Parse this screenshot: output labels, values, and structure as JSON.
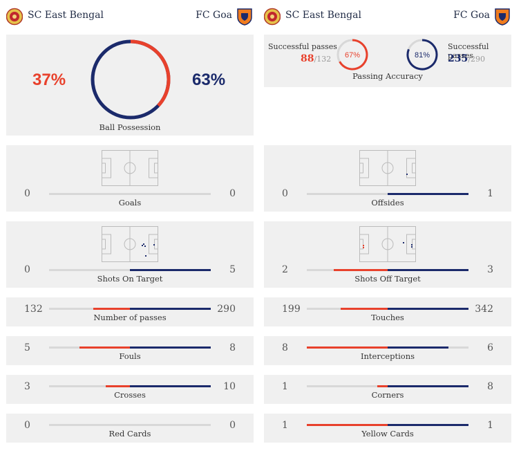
{
  "teams": {
    "home": {
      "name": "SC East Bengal",
      "color": "#e8412c"
    },
    "away": {
      "name": "FC Goa",
      "color": "#1b2a6b"
    }
  },
  "possession": {
    "home_pct": "37%",
    "away_pct": "63%",
    "home_value": 37,
    "away_value": 63,
    "label": "Ball Possession"
  },
  "passing": {
    "label": "Passing Accuracy",
    "home": {
      "label": "Successful passes",
      "success": "88",
      "total": "/132",
      "accuracy": "67%",
      "accuracy_value": 67
    },
    "away": {
      "label": "Successful passes",
      "success": "235",
      "total": "/290",
      "accuracy": "81%",
      "accuracy_value": 81
    }
  },
  "stats": [
    {
      "label": "Goals",
      "home": "0",
      "away": "0",
      "home_val": 0,
      "away_val": 0
    },
    {
      "label": "Offsides",
      "home": "0",
      "away": "1",
      "home_val": 0,
      "away_val": 1
    },
    {
      "label": "Shots On Target",
      "home": "0",
      "away": "5",
      "home_val": 0,
      "away_val": 5
    },
    {
      "label": "Shots Off Target",
      "home": "2",
      "away": "3",
      "home_val": 2,
      "away_val": 3
    },
    {
      "label": "Number of passes",
      "home": "132",
      "away": "290",
      "home_val": 132,
      "away_val": 290
    },
    {
      "label": "Touches",
      "home": "199",
      "away": "342",
      "home_val": 199,
      "away_val": 342
    },
    {
      "label": "Fouls",
      "home": "5",
      "away": "8",
      "home_val": 5,
      "away_val": 8
    },
    {
      "label": "Interceptions",
      "home": "8",
      "away": "6",
      "home_val": 8,
      "away_val": 6
    },
    {
      "label": "Crosses",
      "home": "3",
      "away": "10",
      "home_val": 3,
      "away_val": 10
    },
    {
      "label": "Corners",
      "home": "1",
      "away": "8",
      "home_val": 1,
      "away_val": 8
    },
    {
      "label": "Red Cards",
      "home": "0",
      "away": "0",
      "home_val": 0,
      "away_val": 0
    },
    {
      "label": "Yellow Cards",
      "home": "1",
      "away": "1",
      "home_val": 1,
      "away_val": 1
    }
  ],
  "icons": {
    "home_crest": "east-bengal-crest-icon",
    "away_crest": "fc-goa-crest-icon",
    "pitch": "football-pitch-icon"
  }
}
